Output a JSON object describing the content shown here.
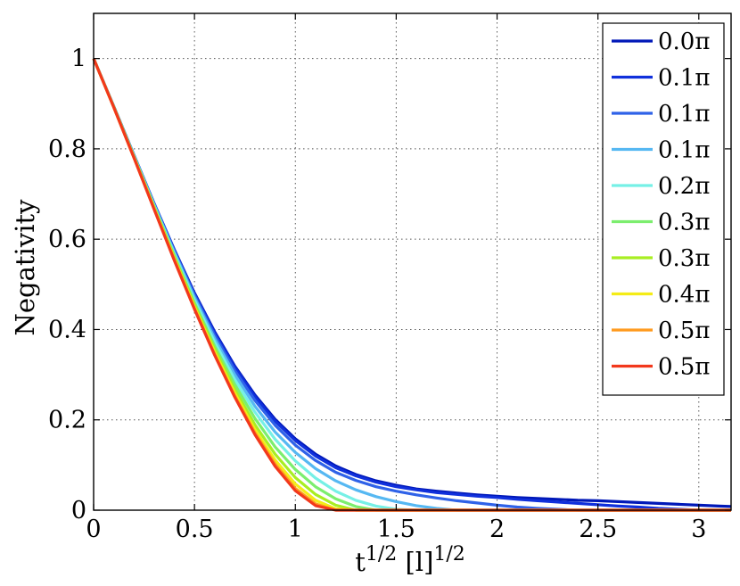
{
  "chart_data": {
    "type": "line",
    "xlabel": "t^{1/2}   [l]^{1/2}",
    "ylabel": "Negativity",
    "xlim": [
      0,
      3.16
    ],
    "ylim": [
      0,
      1.1
    ],
    "xticks": [
      0,
      0.5,
      1,
      1.5,
      2,
      2.5,
      3
    ],
    "xtick_labels": [
      "0",
      "0.5",
      "1",
      "1.5",
      "2",
      "2.5",
      "3"
    ],
    "yticks": [
      0,
      0.2,
      0.4,
      0.6,
      0.8,
      1
    ],
    "ytick_labels": [
      "0",
      "0.2",
      "0.4",
      "0.6",
      "0.8",
      "1"
    ],
    "grid": true,
    "legend_position": "top-right",
    "x": [
      0,
      0.1,
      0.2,
      0.3,
      0.4,
      0.5,
      0.6,
      0.7,
      0.8,
      0.9,
      1.0,
      1.1,
      1.2,
      1.3,
      1.4,
      1.5,
      1.6,
      1.7,
      1.8,
      1.9,
      2.0,
      2.1,
      2.2,
      2.3,
      2.4,
      2.5,
      2.6,
      2.7,
      2.8,
      2.9,
      3.0,
      3.1,
      3.16
    ],
    "series": [
      {
        "name": "0.0π",
        "color": "#0018b8",
        "values": [
          1.0,
          0.894,
          0.786,
          0.679,
          0.577,
          0.481,
          0.395,
          0.319,
          0.255,
          0.201,
          0.158,
          0.124,
          0.098,
          0.079,
          0.065,
          0.055,
          0.047,
          0.042,
          0.038,
          0.034,
          0.031,
          0.028,
          0.026,
          0.024,
          0.022,
          0.021,
          0.019,
          0.017,
          0.015,
          0.013,
          0.011,
          0.009,
          0.008
        ]
      },
      {
        "name": "0.1π",
        "color": "#1030dc",
        "values": [
          1.0,
          0.894,
          0.786,
          0.679,
          0.576,
          0.479,
          0.392,
          0.316,
          0.251,
          0.197,
          0.154,
          0.12,
          0.094,
          0.076,
          0.062,
          0.052,
          0.045,
          0.039,
          0.035,
          0.031,
          0.028,
          0.024,
          0.021,
          0.018,
          0.015,
          0.012,
          0.009,
          0.007,
          0.004,
          0.002,
          0.0,
          0.0,
          0.0
        ]
      },
      {
        "name": "0.1π",
        "color": "#2f62e8",
        "values": [
          1.0,
          0.894,
          0.786,
          0.678,
          0.574,
          0.476,
          0.387,
          0.309,
          0.243,
          0.188,
          0.144,
          0.11,
          0.084,
          0.066,
          0.052,
          0.042,
          0.034,
          0.027,
          0.021,
          0.016,
          0.011,
          0.007,
          0.004,
          0.002,
          0.0,
          0.0,
          0.0,
          0.0,
          0.0,
          0.0,
          0.0,
          0.0,
          0.0
        ]
      },
      {
        "name": "0.1π",
        "color": "#56b8f2",
        "values": [
          1.0,
          0.894,
          0.785,
          0.676,
          0.571,
          0.471,
          0.38,
          0.3,
          0.23,
          0.173,
          0.128,
          0.092,
          0.065,
          0.045,
          0.03,
          0.019,
          0.01,
          0.004,
          0.0,
          0.0,
          0.0,
          0.0,
          0.0,
          0.0,
          0.0,
          0.0,
          0.0,
          0.0,
          0.0,
          0.0,
          0.0,
          0.0,
          0.0
        ]
      },
      {
        "name": "0.2π",
        "color": "#76f0e6",
        "values": [
          1.0,
          0.893,
          0.784,
          0.674,
          0.567,
          0.465,
          0.372,
          0.289,
          0.217,
          0.157,
          0.109,
          0.071,
          0.042,
          0.022,
          0.009,
          0.002,
          0.0,
          0.0,
          0.0,
          0.0,
          0.0,
          0.0,
          0.0,
          0.0,
          0.0,
          0.0,
          0.0,
          0.0,
          0.0,
          0.0,
          0.0,
          0.0,
          0.0
        ]
      },
      {
        "name": "0.3π",
        "color": "#7cee6e",
        "values": [
          1.0,
          0.893,
          0.783,
          0.672,
          0.563,
          0.459,
          0.363,
          0.278,
          0.203,
          0.14,
          0.09,
          0.052,
          0.025,
          0.008,
          0.0,
          0.0,
          0.0,
          0.0,
          0.0,
          0.0,
          0.0,
          0.0,
          0.0,
          0.0,
          0.0,
          0.0,
          0.0,
          0.0,
          0.0,
          0.0,
          0.0,
          0.0,
          0.0
        ]
      },
      {
        "name": "0.3π",
        "color": "#a8ee22",
        "values": [
          1.0,
          0.893,
          0.782,
          0.67,
          0.56,
          0.454,
          0.356,
          0.267,
          0.189,
          0.124,
          0.072,
          0.035,
          0.011,
          0.0,
          0.0,
          0.0,
          0.0,
          0.0,
          0.0,
          0.0,
          0.0,
          0.0,
          0.0,
          0.0,
          0.0,
          0.0,
          0.0,
          0.0,
          0.0,
          0.0,
          0.0,
          0.0,
          0.0
        ]
      },
      {
        "name": "0.4π",
        "color": "#f4ec16",
        "values": [
          1.0,
          0.892,
          0.781,
          0.668,
          0.557,
          0.45,
          0.35,
          0.259,
          0.178,
          0.111,
          0.058,
          0.022,
          0.003,
          0.0,
          0.0,
          0.0,
          0.0,
          0.0,
          0.0,
          0.0,
          0.0,
          0.0,
          0.0,
          0.0,
          0.0,
          0.0,
          0.0,
          0.0,
          0.0,
          0.0,
          0.0,
          0.0,
          0.0
        ]
      },
      {
        "name": "0.5π",
        "color": "#ff9a1e",
        "values": [
          1.0,
          0.892,
          0.78,
          0.667,
          0.555,
          0.447,
          0.345,
          0.253,
          0.171,
          0.102,
          0.048,
          0.014,
          0.0,
          0.0,
          0.0,
          0.0,
          0.0,
          0.0,
          0.0,
          0.0,
          0.0,
          0.0,
          0.0,
          0.0,
          0.0,
          0.0,
          0.0,
          0.0,
          0.0,
          0.0,
          0.0,
          0.0,
          0.0
        ]
      },
      {
        "name": "0.5π",
        "color": "#f2381c",
        "values": [
          1.0,
          0.892,
          0.78,
          0.666,
          0.553,
          0.445,
          0.343,
          0.25,
          0.167,
          0.097,
          0.043,
          0.01,
          0.0,
          0.0,
          0.0,
          0.0,
          0.0,
          0.0,
          0.0,
          0.0,
          0.0,
          0.0,
          0.0,
          0.0,
          0.0,
          0.0,
          0.0,
          0.0,
          0.0,
          0.0,
          0.0,
          0.0,
          0.0
        ]
      }
    ]
  }
}
